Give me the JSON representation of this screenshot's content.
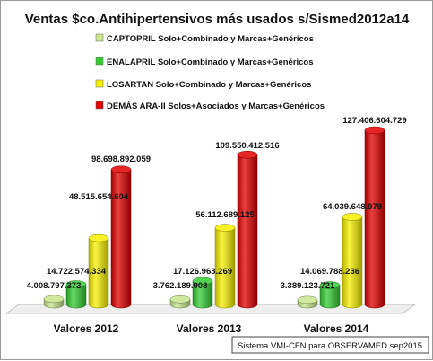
{
  "chart_data": {
    "type": "bar",
    "title": "Ventas $co.Antihipertensivos más usados s/Sismed2012a14",
    "categories": [
      "Valores 2012",
      "Valores 2013",
      "Valores 2014"
    ],
    "series": [
      {
        "name": "CAPTOPRIL Solo+Combinado y Marcas+Genéricos",
        "color": "#c8e68c",
        "values": [
          4008797373,
          3762189908,
          3389123721
        ],
        "labels": [
          "4.008.797.373",
          "3.762.189.908",
          "3.389.123.721"
        ]
      },
      {
        "name": "ENALAPRIL Solo+Combinado y Marcas+Genéricos",
        "color": "#33cc33",
        "values": [
          14722574334,
          17126963269,
          14069788236
        ],
        "labels": [
          "14.722.574.334",
          "17.126.963.269",
          "14.069.788.236"
        ]
      },
      {
        "name": "LOSARTAN Solo+Combinado y Marcas+Genéricos",
        "color": "#f5f000",
        "values": [
          48515654604,
          56112689125,
          64039648979
        ],
        "labels": [
          "48.515.654.604",
          "56.112.689.125",
          "64.039.648.979"
        ]
      },
      {
        "name": "DEMÁS ARA-II Solos+Asociados y Marcas+Genéricos",
        "color": "#e00000",
        "values": [
          98698892059,
          109550412516,
          127406604729
        ],
        "labels": [
          "98.698.892.059",
          "109.550.412.516",
          "127.406.604.729"
        ]
      }
    ],
    "legend_position": "top-left",
    "grid": false,
    "source": "Sistema VMI-CFN para OBSERVAMED sep2015"
  }
}
